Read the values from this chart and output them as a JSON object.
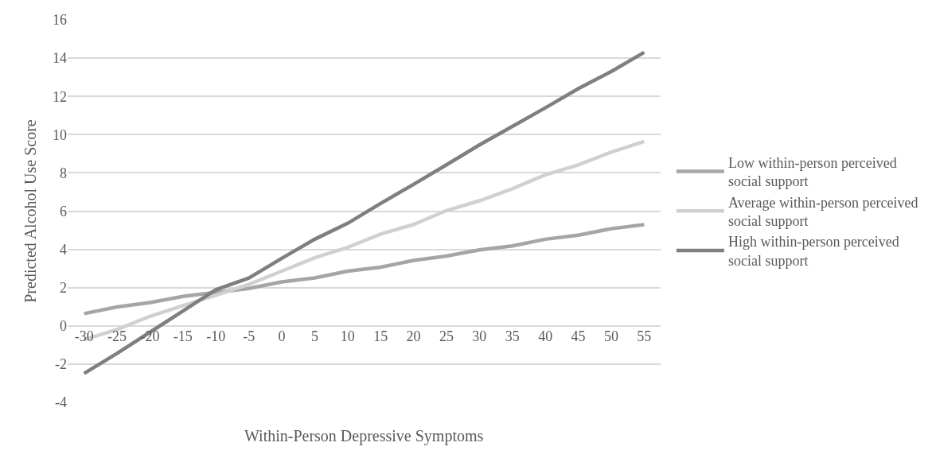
{
  "chart_data": {
    "type": "line",
    "xlabel": "Within-Person Depressive Symptoms",
    "ylabel": "Predicted Alcohol Use Score",
    "categories": [
      "-30",
      "-25",
      "-20",
      "-15",
      "-10",
      "-5",
      "0",
      "5",
      "10",
      "15",
      "20",
      "25",
      "30",
      "35",
      "40",
      "45",
      "50",
      "55"
    ],
    "series": [
      {
        "name": "Low within-person perceived social support",
        "color": "#a5a5a5",
        "values": [
          0.64,
          0.99,
          1.22,
          1.54,
          1.75,
          1.96,
          2.3,
          2.51,
          2.86,
          3.07,
          3.42,
          3.65,
          3.97,
          4.18,
          4.53,
          4.74,
          5.08,
          5.29
        ]
      },
      {
        "name": "Average within-person perceived social support",
        "color": "#d0d0d0",
        "values": [
          -0.72,
          -0.19,
          0.5,
          1.06,
          1.6,
          2.17,
          2.86,
          3.56,
          4.1,
          4.8,
          5.3,
          6.03,
          6.54,
          7.17,
          7.9,
          8.42,
          9.08,
          9.64
        ]
      },
      {
        "name": "High within-person perceived social support",
        "color": "#7f7f7f",
        "values": [
          -2.49,
          -1.44,
          -0.33,
          0.78,
          1.89,
          2.5,
          3.53,
          4.53,
          5.36,
          6.4,
          7.4,
          8.42,
          9.46,
          10.43,
          11.4,
          12.4,
          13.3,
          14.3
        ]
      }
    ],
    "ylim": [
      -4,
      16
    ],
    "yticks": [
      -4,
      -2,
      0,
      2,
      4,
      6,
      8,
      10,
      12,
      14,
      16
    ],
    "grid": "y",
    "legend": "right",
    "marker": "none",
    "line_style": "solid"
  }
}
